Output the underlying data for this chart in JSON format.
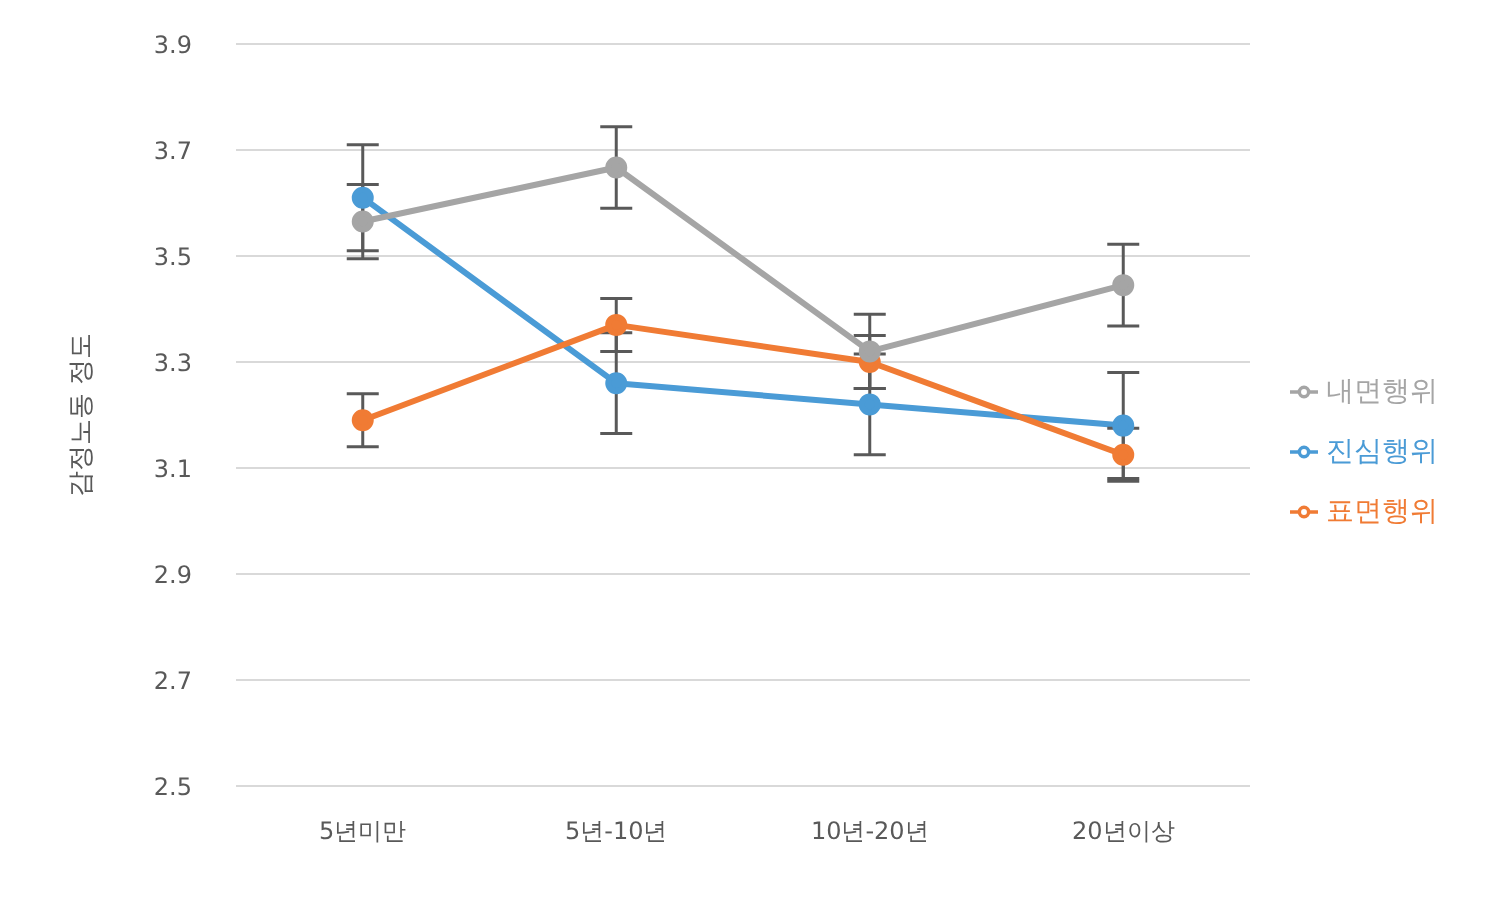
{
  "chart_data": {
    "type": "line",
    "ylabel": "감정노동 정도",
    "categories": [
      "5년미만",
      "5년-10년",
      "10년-20년",
      "20년이상"
    ],
    "series": [
      {
        "name": "진심행위",
        "color": "#4a9bd6",
        "values": [
          3.61,
          3.26,
          3.22,
          3.18
        ],
        "errors": [
          0.1,
          0.095,
          0.095,
          0.1
        ]
      },
      {
        "name": "표면행위",
        "color": "#f07b34",
        "values": [
          3.19,
          3.37,
          3.3,
          3.125
        ],
        "errors": [
          0.05,
          0.05,
          0.05,
          0.05
        ]
      },
      {
        "name": "내면행위",
        "color": "#a5a5a5",
        "values": [
          3.565,
          3.667,
          3.32,
          3.445
        ],
        "errors": [
          0.07,
          0.077,
          0.07,
          0.077
        ]
      }
    ],
    "ylim": [
      2.5,
      3.9
    ],
    "yticks": [
      2.5,
      2.7,
      2.9,
      3.1,
      3.3,
      3.5,
      3.7,
      3.9
    ],
    "grid": "y",
    "legend": "right",
    "marker": "circle",
    "line_style": "solid"
  }
}
